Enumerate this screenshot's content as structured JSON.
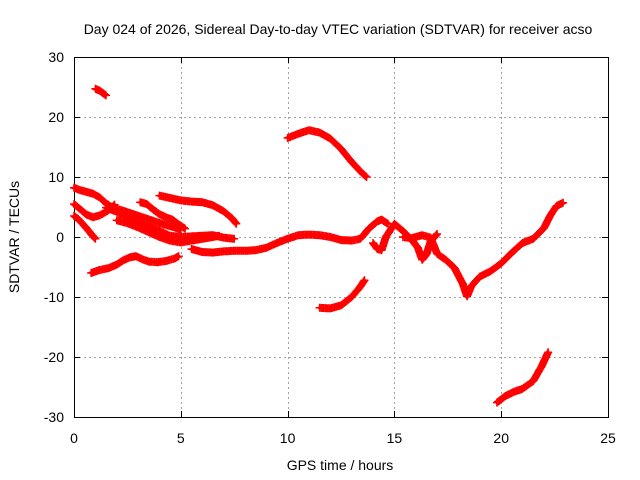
{
  "chart_data": {
    "type": "scatter",
    "title": "Day 024 of 2026, Sidereal Day-to-day VTEC variation (SDTVAR) for receiver acso",
    "xlabel": "GPS time / hours",
    "ylabel": "SDTVAR / TECUs",
    "xlim": [
      0,
      25
    ],
    "ylim": [
      -30,
      30
    ],
    "xticks": [
      0,
      5,
      10,
      15,
      20,
      25
    ],
    "yticks": [
      -30,
      -20,
      -10,
      0,
      10,
      20,
      30
    ],
    "grid": true,
    "marker": "plus",
    "marker_color": "#ff0000",
    "series": [
      {
        "name": "arc-01",
        "points": [
          [
            1.0,
            24.7
          ],
          [
            1.2,
            24.4
          ],
          [
            1.5,
            23.6
          ]
        ]
      },
      {
        "name": "arc-02",
        "points": [
          [
            0.0,
            8.2
          ],
          [
            0.3,
            7.8
          ],
          [
            0.6,
            7.5
          ],
          [
            0.9,
            7.2
          ],
          [
            1.2,
            6.6
          ],
          [
            1.5,
            5.6
          ],
          [
            1.8,
            4.9
          ],
          [
            2.2,
            4.5
          ],
          [
            2.7,
            3.9
          ],
          [
            3.2,
            3.3
          ],
          [
            3.7,
            2.7
          ],
          [
            4.2,
            2.1
          ],
          [
            4.7,
            1.6
          ],
          [
            5.0,
            1.2
          ]
        ]
      },
      {
        "name": "arc-03",
        "points": [
          [
            0.0,
            5.5
          ],
          [
            0.3,
            4.6
          ],
          [
            0.6,
            3.7
          ],
          [
            0.9,
            3.3
          ],
          [
            1.2,
            3.6
          ],
          [
            1.5,
            4.2
          ],
          [
            1.7,
            4.7
          ],
          [
            1.9,
            5.4
          ]
        ]
      },
      {
        "name": "arc-04",
        "points": [
          [
            0.0,
            3.5
          ],
          [
            0.2,
            3.0
          ],
          [
            0.4,
            2.2
          ],
          [
            0.6,
            1.4
          ],
          [
            0.8,
            0.5
          ],
          [
            1.0,
            -0.3
          ]
        ]
      },
      {
        "name": "arc-05",
        "points": [
          [
            1.5,
            4.9
          ],
          [
            2.0,
            4.2
          ],
          [
            2.5,
            3.3
          ],
          [
            3.0,
            2.5
          ],
          [
            3.5,
            1.8
          ],
          [
            4.0,
            1.0
          ],
          [
            4.5,
            0.2
          ],
          [
            5.0,
            0.0
          ],
          [
            5.5,
            0.1
          ],
          [
            6.0,
            0.2
          ],
          [
            6.5,
            0.3
          ],
          [
            7.0,
            -0.1
          ],
          [
            7.5,
            -0.3
          ]
        ]
      },
      {
        "name": "arc-06",
        "points": [
          [
            3.1,
            5.8
          ],
          [
            3.4,
            5.5
          ],
          [
            3.7,
            4.6
          ],
          [
            4.0,
            3.8
          ],
          [
            4.3,
            3.3
          ],
          [
            4.6,
            2.9
          ],
          [
            4.9,
            2.1
          ],
          [
            5.2,
            1.4
          ]
        ]
      },
      {
        "name": "arc-07",
        "points": [
          [
            2.0,
            2.8
          ],
          [
            2.5,
            2.3
          ],
          [
            3.0,
            1.6
          ],
          [
            3.5,
            0.8
          ],
          [
            4.0,
            0.0
          ],
          [
            4.5,
            -0.6
          ],
          [
            5.0,
            -0.9
          ],
          [
            5.5,
            -0.6
          ],
          [
            6.0,
            -0.3
          ],
          [
            6.5,
            0.0
          ],
          [
            6.8,
            0.2
          ]
        ]
      },
      {
        "name": "arc-08",
        "points": [
          [
            0.8,
            -6.0
          ],
          [
            1.2,
            -5.5
          ],
          [
            1.6,
            -5.2
          ],
          [
            2.0,
            -4.6
          ],
          [
            2.3,
            -3.9
          ],
          [
            2.6,
            -3.4
          ],
          [
            2.9,
            -3.2
          ],
          [
            3.2,
            -3.7
          ],
          [
            3.5,
            -4.1
          ],
          [
            3.9,
            -4.2
          ],
          [
            4.3,
            -4.0
          ],
          [
            4.7,
            -3.6
          ],
          [
            4.9,
            -3.2
          ]
        ]
      },
      {
        "name": "arc-09",
        "points": [
          [
            4.0,
            6.9
          ],
          [
            4.5,
            6.5
          ],
          [
            5.0,
            6.1
          ],
          [
            5.5,
            5.9
          ],
          [
            6.0,
            5.8
          ],
          [
            6.5,
            5.3
          ],
          [
            7.0,
            4.3
          ],
          [
            7.4,
            3.1
          ],
          [
            7.6,
            2.2
          ]
        ]
      },
      {
        "name": "arc-10",
        "points": [
          [
            5.5,
            -2.0
          ],
          [
            6.0,
            -2.5
          ],
          [
            6.5,
            -2.6
          ],
          [
            7.0,
            -2.4
          ],
          [
            7.5,
            -2.3
          ],
          [
            8.0,
            -2.3
          ],
          [
            8.5,
            -2.2
          ],
          [
            9.0,
            -1.8
          ],
          [
            9.5,
            -1.0
          ],
          [
            10.0,
            -0.3
          ],
          [
            10.5,
            0.3
          ],
          [
            11.0,
            0.4
          ],
          [
            11.5,
            0.3
          ],
          [
            12.0,
            0.0
          ],
          [
            12.5,
            -0.5
          ],
          [
            13.0,
            -0.6
          ],
          [
            13.4,
            -0.3
          ],
          [
            13.6,
            0.5
          ],
          [
            13.8,
            1.4
          ],
          [
            14.0,
            2.0
          ],
          [
            14.2,
            2.6
          ],
          [
            14.4,
            2.9
          ],
          [
            14.7,
            2.2
          ]
        ]
      },
      {
        "name": "arc-11",
        "points": [
          [
            10.0,
            16.5
          ],
          [
            10.5,
            17.2
          ],
          [
            11.0,
            17.8
          ],
          [
            11.5,
            17.4
          ],
          [
            12.0,
            16.4
          ],
          [
            12.5,
            14.7
          ],
          [
            13.0,
            12.5
          ],
          [
            13.5,
            10.6
          ],
          [
            13.7,
            10.0
          ]
        ]
      },
      {
        "name": "arc-12",
        "points": [
          [
            11.5,
            -11.8
          ],
          [
            12.0,
            -11.9
          ],
          [
            12.5,
            -11.4
          ],
          [
            13.0,
            -10.0
          ],
          [
            13.4,
            -8.3
          ],
          [
            13.6,
            -7.2
          ]
        ]
      },
      {
        "name": "arc-13",
        "points": [
          [
            14.0,
            -1.0
          ],
          [
            14.2,
            -2.0
          ],
          [
            14.4,
            -2.2
          ],
          [
            14.6,
            0.0
          ],
          [
            15.0,
            2.2
          ],
          [
            15.4,
            1.0
          ],
          [
            15.8,
            -0.4
          ],
          [
            16.1,
            -1.8
          ],
          [
            16.3,
            -3.8
          ],
          [
            16.5,
            -2.9
          ],
          [
            16.7,
            -0.7
          ],
          [
            17.0,
            0.5
          ]
        ]
      },
      {
        "name": "arc-14",
        "points": [
          [
            15.4,
            0.0
          ],
          [
            15.8,
            -0.2
          ],
          [
            16.3,
            0.3
          ],
          [
            16.7,
            -0.1
          ],
          [
            17.0,
            -2.8
          ],
          [
            17.4,
            -3.8
          ],
          [
            17.8,
            -5.1
          ],
          [
            18.2,
            -7.8
          ],
          [
            18.4,
            -9.9
          ],
          [
            18.6,
            -8.2
          ],
          [
            19.0,
            -6.6
          ],
          [
            19.5,
            -5.7
          ],
          [
            20.0,
            -4.4
          ],
          [
            20.5,
            -2.6
          ],
          [
            21.0,
            -1.0
          ],
          [
            21.5,
            -0.3
          ],
          [
            22.0,
            1.5
          ],
          [
            22.3,
            3.6
          ],
          [
            22.6,
            5.2
          ],
          [
            22.9,
            5.7
          ]
        ]
      },
      {
        "name": "arc-15",
        "points": [
          [
            19.8,
            -27.6
          ],
          [
            20.2,
            -26.5
          ],
          [
            20.6,
            -25.8
          ],
          [
            21.0,
            -25.3
          ],
          [
            21.5,
            -24.0
          ],
          [
            21.9,
            -21.5
          ],
          [
            22.2,
            -19.2
          ]
        ]
      }
    ]
  }
}
